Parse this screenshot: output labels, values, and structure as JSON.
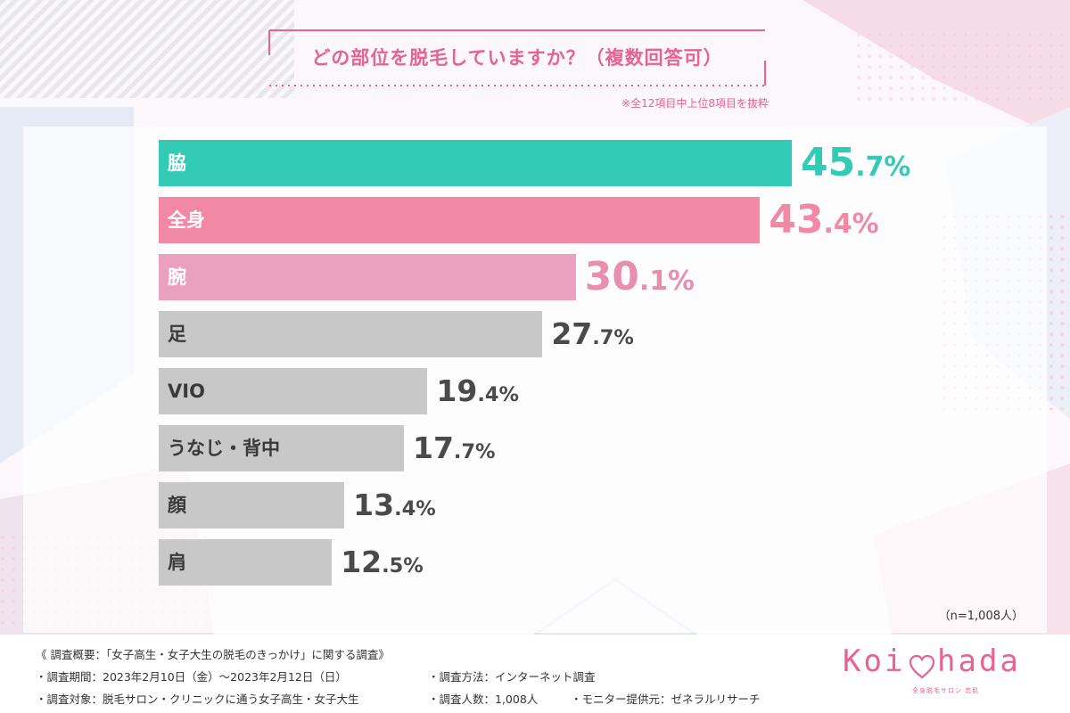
{
  "chart_data": {
    "type": "bar",
    "orientation": "horizontal",
    "title": "どの部位を脱毛していますか？（複数回答可）",
    "note": "※全12項目中上位8項目を抜粋",
    "sample_size": "（n=1,008人）",
    "unit": "%",
    "xlim": [
      0,
      50
    ],
    "grid": false,
    "categories": [
      "脇",
      "全身",
      "腕",
      "足",
      "VIO",
      "うなじ・背中",
      "顔",
      "肩"
    ],
    "values": [
      45.7,
      43.4,
      30.1,
      27.7,
      19.4,
      17.7,
      13.4,
      12.5
    ],
    "bar_colors": [
      "#33cbb6",
      "#f088a6",
      "#eaa0bf",
      "#c8c8c8",
      "#c8c8c8",
      "#c8c8c8",
      "#c8c8c8",
      "#c8c8c8"
    ],
    "value_colors": [
      "#33cbb6",
      "#f088a6",
      "#e88fb0",
      "#4a4a4a",
      "#4a4a4a",
      "#4a4a4a",
      "#4a4a4a",
      "#4a4a4a"
    ]
  },
  "footer": {
    "heading": "《 調査概要：「女子高生・女子大生の脱毛のきっかけ」に関する調査》",
    "period": "・調査期間：2023年2月10日（金）～2023年2月12日（日）",
    "method": "・調査方法：インターネット調査",
    "target": "・調査対象：脱毛サロン・クリニックに通う女子高生・女子大生",
    "count": "・調査人数：1,008人",
    "provider": "・モニター提供元：ゼネラルリサーチ"
  },
  "logo": {
    "left": "Koi",
    "right": "hada",
    "tagline": "全身脱毛サロン 恋肌"
  },
  "colors": {
    "accent_pink": "#e8638f",
    "teal": "#33cbb6"
  }
}
